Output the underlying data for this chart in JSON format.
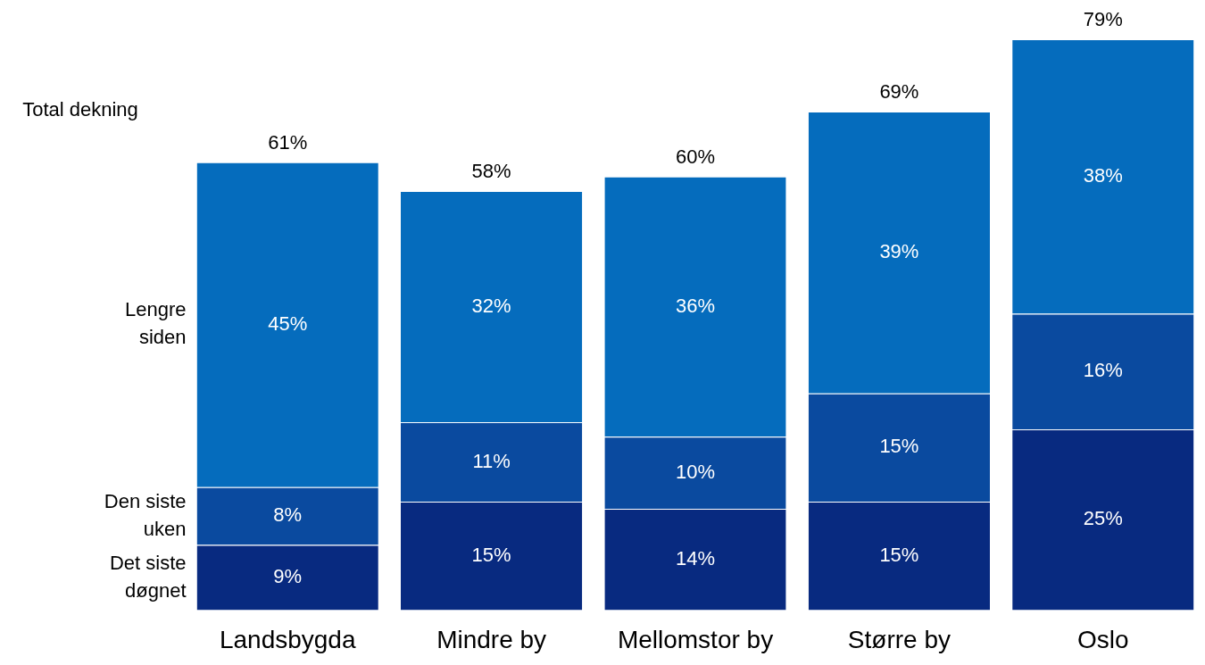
{
  "chart_data": {
    "type": "bar",
    "stacked": true,
    "legend": false,
    "categories": [
      "Landsbygda",
      "Mindre by",
      "Mellomstor by",
      "Større by",
      "Oslo"
    ],
    "series": [
      {
        "name": "Det siste døgnet",
        "color": "#082a80",
        "values": [
          9,
          15,
          14,
          15,
          25
        ],
        "value_labels": [
          "9%",
          "15%",
          "14%",
          "15%",
          "25%"
        ]
      },
      {
        "name": "Den siste uken",
        "color": "#0a4a9f",
        "values": [
          8,
          11,
          10,
          15,
          16
        ],
        "value_labels": [
          "8%",
          "11%",
          "10%",
          "15%",
          "16%"
        ]
      },
      {
        "name": "Lengre siden",
        "color": "#056cbd",
        "values": [
          45,
          32,
          36,
          39,
          38
        ],
        "value_labels": [
          "45%",
          "32%",
          "36%",
          "39%",
          "38%"
        ]
      }
    ],
    "totals": [
      "61%",
      "58%",
      "60%",
      "69%",
      "79%"
    ],
    "annotations": [
      "Total dekning"
    ]
  }
}
